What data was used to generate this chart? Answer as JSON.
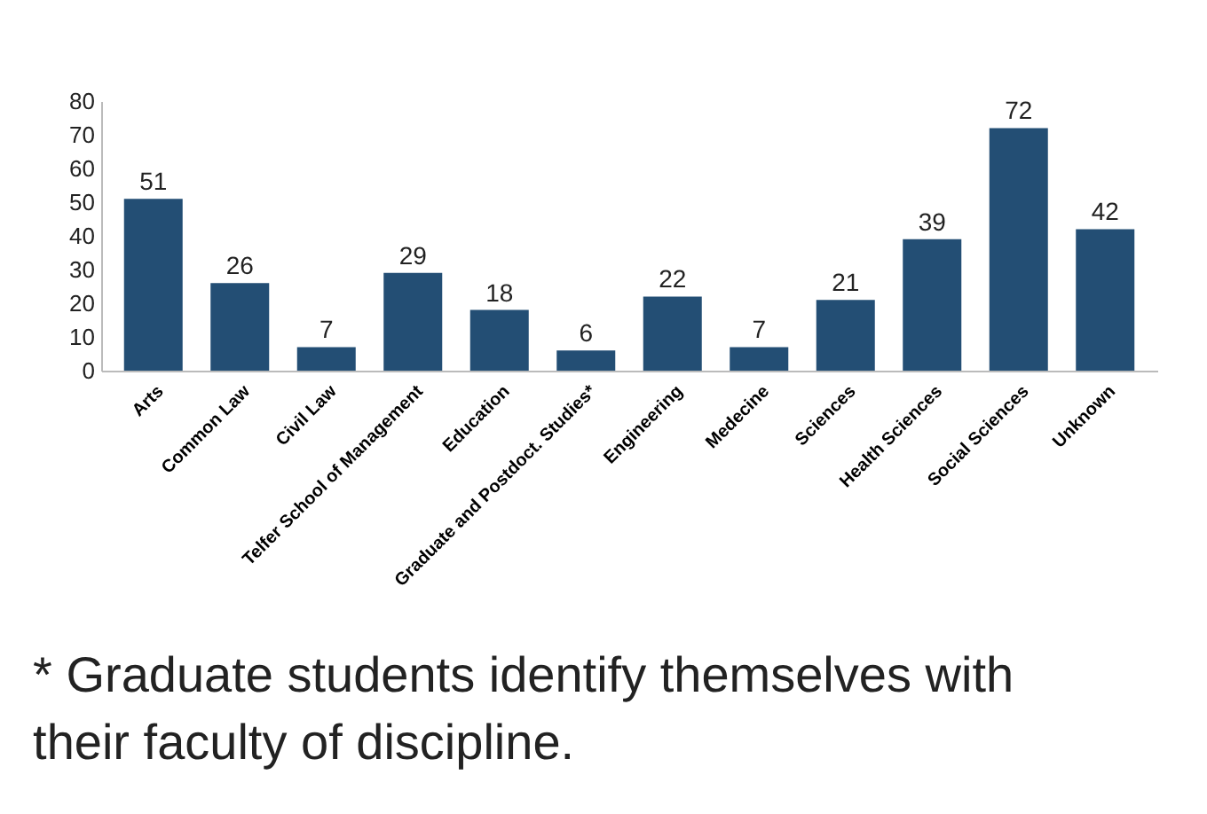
{
  "chart_data": {
    "type": "bar",
    "categories": [
      "Arts",
      "Common Law",
      "Civil Law",
      "Telfer School of Management",
      "Education",
      "Graduate and Postdoct. Studies*",
      "Engineering",
      "Medecine",
      "Sciences",
      "Health Sciences",
      "Social Sciences",
      "Unknown"
    ],
    "values": [
      51,
      26,
      7,
      29,
      18,
      6,
      22,
      7,
      21,
      39,
      72,
      42
    ],
    "color": "#234e74",
    "ylim": [
      0,
      80
    ],
    "yticks": [
      0,
      10,
      20,
      30,
      40,
      50,
      60,
      70,
      80
    ],
    "grid": false,
    "data_labels": true,
    "annotations": [
      "* Graduate students identify themselves with their  faculty of discipline."
    ]
  }
}
